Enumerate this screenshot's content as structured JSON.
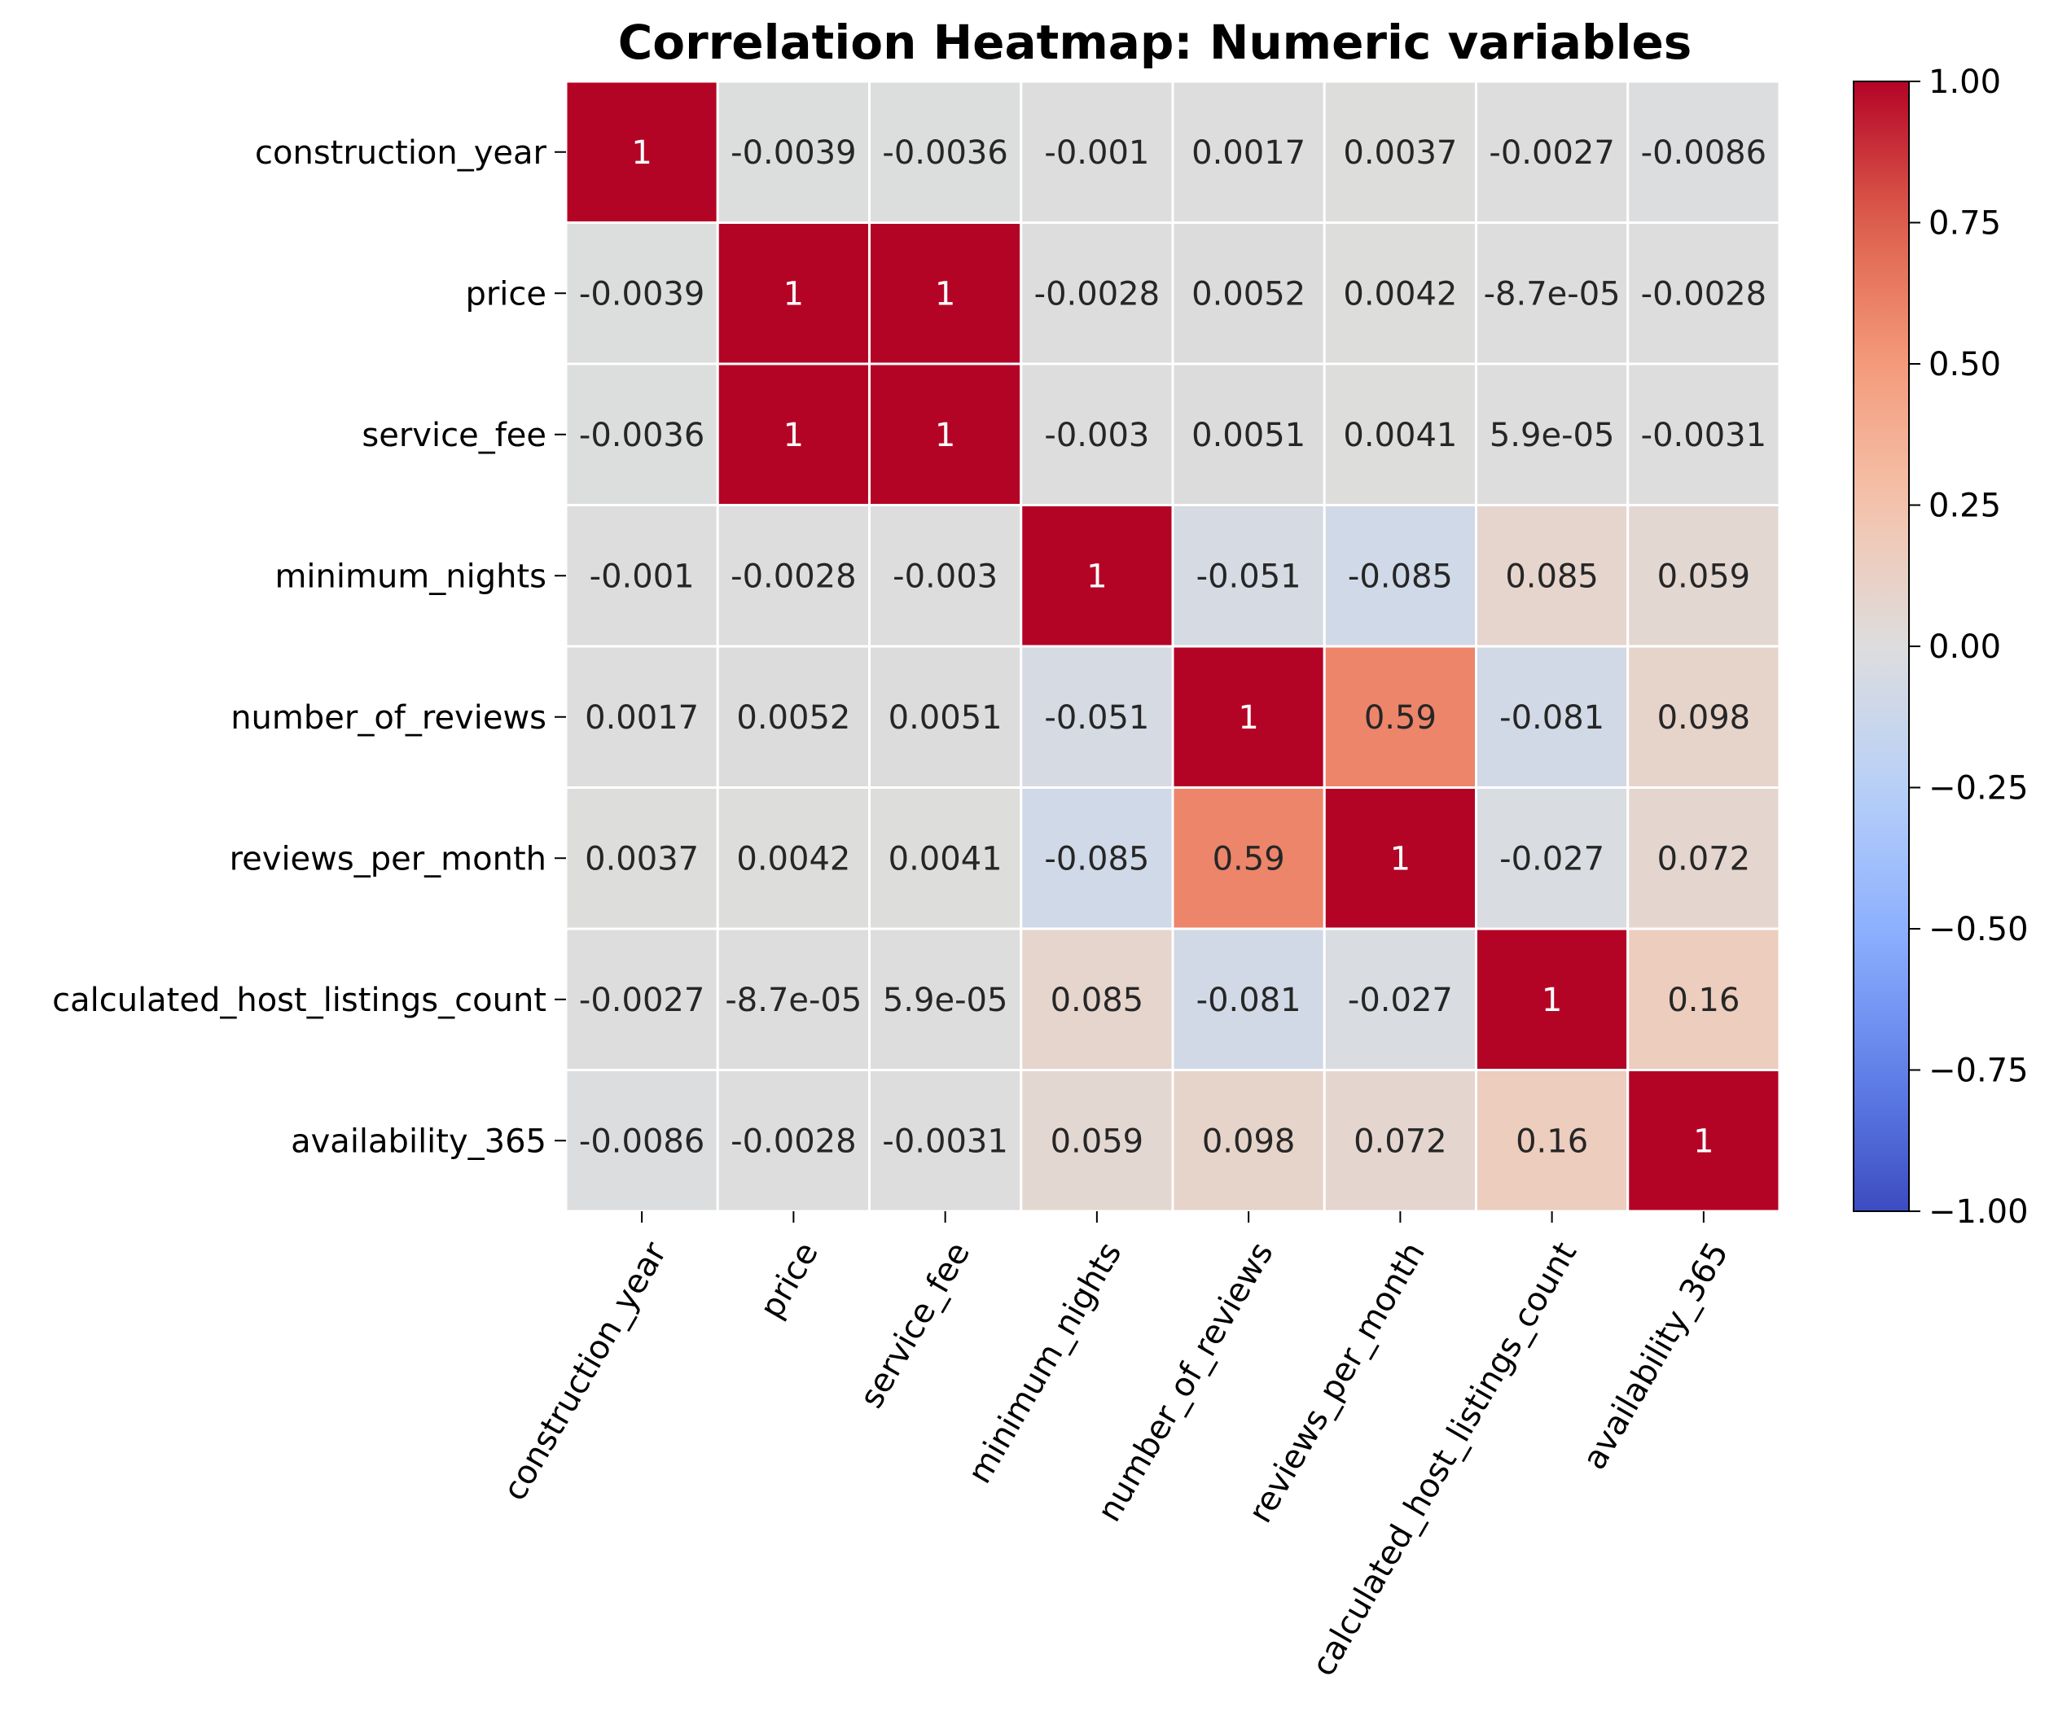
{
  "chart_data": {
    "type": "heatmap",
    "title": "Correlation Heatmap: Numeric variables",
    "variables": [
      "construction_year",
      "price",
      "service_fee",
      "minimum_nights",
      "number_of_reviews",
      "reviews_per_month",
      "calculated_host_listings_count",
      "availability_365"
    ],
    "values": [
      [
        1,
        -0.0039,
        -0.0036,
        -0.001,
        0.0017,
        0.0037,
        -0.0027,
        -0.0086
      ],
      [
        -0.0039,
        1,
        1,
        -0.0028,
        0.0052,
        0.0042,
        -8.7e-05,
        -0.0028
      ],
      [
        -0.0036,
        1,
        1,
        -0.003,
        0.0051,
        0.0041,
        5.9e-05,
        -0.0031
      ],
      [
        -0.001,
        -0.0028,
        -0.003,
        1,
        -0.051,
        -0.085,
        0.085,
        0.059
      ],
      [
        0.0017,
        0.0052,
        0.0051,
        -0.051,
        1,
        0.59,
        -0.081,
        0.098
      ],
      [
        0.0037,
        0.0042,
        0.0041,
        -0.085,
        0.59,
        1,
        -0.027,
        0.072
      ],
      [
        -0.0027,
        -8.7e-05,
        5.9e-05,
        0.085,
        -0.081,
        -0.027,
        1,
        0.16
      ],
      [
        -0.0086,
        -0.0028,
        -0.0031,
        0.059,
        0.098,
        0.072,
        0.16,
        1
      ]
    ],
    "annotations": [
      [
        "1",
        "-0.0039",
        "-0.0036",
        "-0.001",
        "0.0017",
        "0.0037",
        "-0.0027",
        "-0.0086"
      ],
      [
        "-0.0039",
        "1",
        "1",
        "-0.0028",
        "0.0052",
        "0.0042",
        "-8.7e-05",
        "-0.0028"
      ],
      [
        "-0.0036",
        "1",
        "1",
        "-0.003",
        "0.0051",
        "0.0041",
        "5.9e-05",
        "-0.0031"
      ],
      [
        "-0.001",
        "-0.0028",
        "-0.003",
        "1",
        "-0.051",
        "-0.085",
        "0.085",
        "0.059"
      ],
      [
        "0.0017",
        "0.0052",
        "0.0051",
        "-0.051",
        "1",
        "0.59",
        "-0.081",
        "0.098"
      ],
      [
        "0.0037",
        "0.0042",
        "0.0041",
        "-0.085",
        "0.59",
        "1",
        "-0.027",
        "0.072"
      ],
      [
        "-0.0027",
        "-8.7e-05",
        "5.9e-05",
        "0.085",
        "-0.081",
        "-0.027",
        "1",
        "0.16"
      ],
      [
        "-0.0086",
        "-0.0028",
        "-0.0031",
        "0.059",
        "0.098",
        "0.072",
        "0.16",
        "1"
      ]
    ],
    "colormap": "coolwarm",
    "vmin": -1,
    "vmax": 1,
    "colorbar_ticks": [
      "1.00",
      "0.75",
      "0.50",
      "0.25",
      "0.00",
      "−0.25",
      "−0.50",
      "−0.75",
      "−1.00"
    ],
    "colorbar_tick_values": [
      1,
      0.75,
      0.5,
      0.25,
      0,
      -0.25,
      -0.5,
      -0.75,
      -1
    ],
    "grid": false,
    "legend": "colorbar-right",
    "x_tick_rotation_deg": 60
  }
}
